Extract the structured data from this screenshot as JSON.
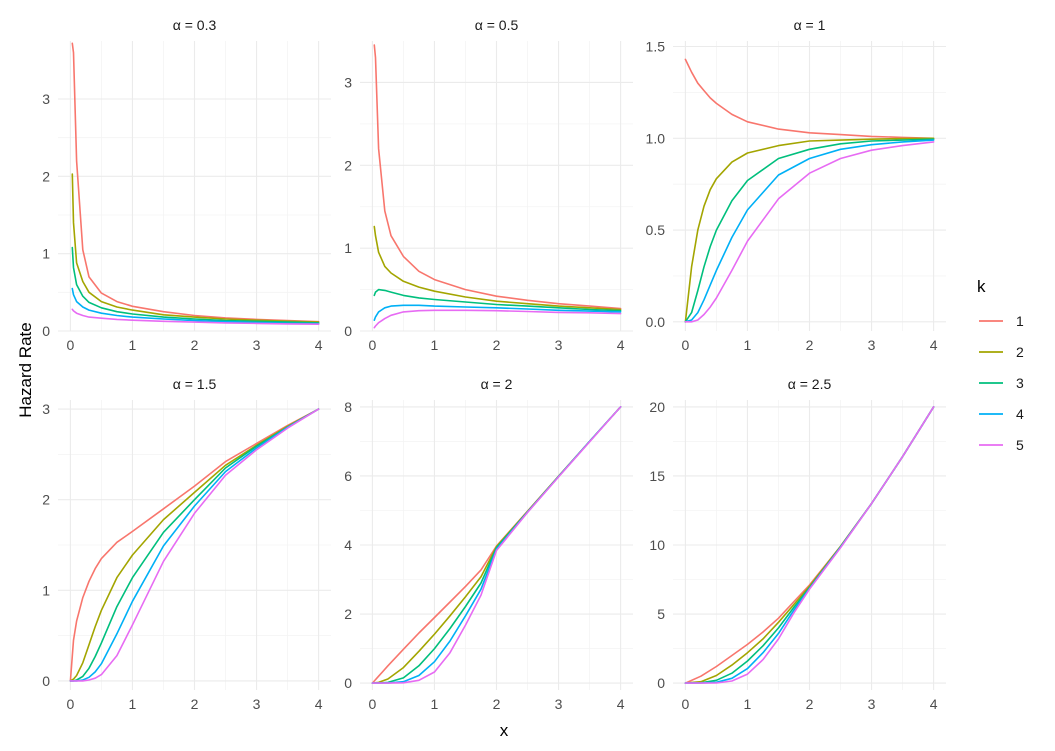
{
  "chart_data": {
    "type": "line",
    "xlabel": "x",
    "ylabel": "Hazard Rate",
    "legend": {
      "title": "k",
      "placement": "right",
      "entries": [
        "1",
        "2",
        "3",
        "4",
        "5"
      ]
    },
    "colors": [
      "#F8766D",
      "#A3A500",
      "#00BF7D",
      "#00B0F6",
      "#E76BF3"
    ],
    "grid": true,
    "xlim": [
      0,
      4
    ],
    "x_ticks": [
      "0",
      "1",
      "2",
      "3",
      "4"
    ],
    "panels": [
      {
        "title": "α = 0.3",
        "alpha": 0.3,
        "ylim": [
          0,
          3.75
        ],
        "y_ticks": [
          0,
          1,
          2,
          3
        ],
        "y_tick_labels": [
          "0",
          "1",
          "2",
          "3"
        ],
        "x": [
          0.03,
          0.05,
          0.1,
          0.2,
          0.3,
          0.5,
          0.75,
          1.0,
          1.5,
          2.0,
          2.5,
          3.0,
          3.5,
          4.0
        ],
        "series": [
          {
            "name": "1",
            "values": [
              3.72,
              3.6,
              2.2,
              1.05,
              0.7,
              0.49,
              0.38,
              0.32,
              0.25,
              0.2,
              0.17,
              0.15,
              0.135,
              0.12
            ]
          },
          {
            "name": "2",
            "values": [
              2.03,
              1.4,
              0.88,
              0.64,
              0.5,
              0.38,
              0.31,
              0.27,
              0.21,
              0.18,
              0.155,
              0.14,
              0.125,
              0.115
            ]
          },
          {
            "name": "3",
            "values": [
              1.08,
              0.82,
              0.6,
              0.45,
              0.37,
              0.3,
              0.25,
              0.22,
              0.18,
              0.155,
              0.135,
              0.125,
              0.115,
              0.105
            ]
          },
          {
            "name": "4",
            "values": [
              0.55,
              0.47,
              0.38,
              0.31,
              0.27,
              0.23,
              0.2,
              0.18,
              0.155,
              0.135,
              0.12,
              0.11,
              0.1,
              0.095
            ]
          },
          {
            "name": "5",
            "values": [
              0.28,
              0.26,
              0.23,
              0.2,
              0.18,
              0.165,
              0.15,
              0.14,
              0.125,
              0.115,
              0.105,
              0.098,
              0.092,
              0.088
            ]
          }
        ]
      },
      {
        "title": "α = 0.5",
        "alpha": 0.5,
        "ylim": [
          0,
          3.5
        ],
        "y_ticks": [
          0,
          1,
          2,
          3
        ],
        "y_tick_labels": [
          "0",
          "1",
          "2",
          "3"
        ],
        "x": [
          0.03,
          0.05,
          0.1,
          0.2,
          0.3,
          0.5,
          0.75,
          1.0,
          1.5,
          2.0,
          2.5,
          3.0,
          3.5,
          4.0
        ],
        "series": [
          {
            "name": "1",
            "values": [
              3.45,
              3.3,
              2.2,
              1.45,
              1.15,
              0.9,
              0.72,
              0.62,
              0.5,
              0.42,
              0.37,
              0.33,
              0.3,
              0.27
            ]
          },
          {
            "name": "2",
            "values": [
              1.26,
              1.15,
              0.95,
              0.78,
              0.7,
              0.6,
              0.53,
              0.48,
              0.41,
              0.36,
              0.33,
              0.3,
              0.28,
              0.26
            ]
          },
          {
            "name": "3",
            "values": [
              0.43,
              0.47,
              0.5,
              0.49,
              0.47,
              0.43,
              0.4,
              0.38,
              0.35,
              0.32,
              0.3,
              0.28,
              0.26,
              0.245
            ]
          },
          {
            "name": "4",
            "values": [
              0.13,
              0.17,
              0.23,
              0.28,
              0.3,
              0.31,
              0.31,
              0.3,
              0.29,
              0.28,
              0.265,
              0.25,
              0.24,
              0.23
            ]
          },
          {
            "name": "5",
            "values": [
              0.04,
              0.06,
              0.1,
              0.15,
              0.19,
              0.23,
              0.245,
              0.25,
              0.25,
              0.245,
              0.235,
              0.225,
              0.22,
              0.21
            ]
          }
        ]
      },
      {
        "title": "α = 1",
        "alpha": 1,
        "ylim": [
          -0.05,
          1.53
        ],
        "y_ticks": [
          0,
          0.5,
          1.0,
          1.5
        ],
        "y_tick_labels": [
          "0.0",
          "0.5",
          "1.0",
          "1.5"
        ],
        "x": [
          0.0,
          0.1,
          0.2,
          0.3,
          0.4,
          0.5,
          0.75,
          1.0,
          1.5,
          2.0,
          2.5,
          3.0,
          3.5,
          4.0
        ],
        "series": [
          {
            "name": "1",
            "values": [
              1.43,
              1.36,
              1.3,
              1.26,
              1.22,
              1.19,
              1.13,
              1.09,
              1.05,
              1.03,
              1.02,
              1.01,
              1.005,
              1.0
            ]
          },
          {
            "name": "2",
            "values": [
              0.0,
              0.3,
              0.5,
              0.63,
              0.72,
              0.78,
              0.87,
              0.92,
              0.96,
              0.985,
              0.99,
              0.995,
              0.998,
              1.0
            ]
          },
          {
            "name": "3",
            "values": [
              0.0,
              0.05,
              0.17,
              0.3,
              0.41,
              0.5,
              0.66,
              0.77,
              0.89,
              0.94,
              0.97,
              0.985,
              0.99,
              0.995
            ]
          },
          {
            "name": "4",
            "values": [
              0.0,
              0.01,
              0.05,
              0.12,
              0.2,
              0.28,
              0.46,
              0.61,
              0.8,
              0.89,
              0.94,
              0.965,
              0.98,
              0.99
            ]
          },
          {
            "name": "5",
            "values": [
              0.0,
              0.0,
              0.01,
              0.04,
              0.08,
              0.13,
              0.28,
              0.44,
              0.67,
              0.81,
              0.89,
              0.935,
              0.96,
              0.98
            ]
          }
        ]
      },
      {
        "title": "α = 1.5",
        "alpha": 1.5,
        "ylim": [
          -0.1,
          3.1
        ],
        "y_ticks": [
          0,
          1,
          2,
          3
        ],
        "y_tick_labels": [
          "0",
          "1",
          "2",
          "3"
        ],
        "x": [
          0.0,
          0.05,
          0.1,
          0.2,
          0.3,
          0.4,
          0.5,
          0.75,
          1.0,
          1.5,
          2.0,
          2.5,
          3.0,
          3.5,
          4.0
        ],
        "series": [
          {
            "name": "1",
            "values": [
              0.0,
              0.45,
              0.66,
              0.92,
              1.1,
              1.24,
              1.35,
              1.53,
              1.65,
              1.9,
              2.15,
              2.42,
              2.62,
              2.82,
              3.0
            ]
          },
          {
            "name": "2",
            "values": [
              0.0,
              0.02,
              0.06,
              0.2,
              0.4,
              0.6,
              0.78,
              1.14,
              1.39,
              1.78,
              2.08,
              2.38,
              2.6,
              2.81,
              3.0
            ]
          },
          {
            "name": "3",
            "values": [
              0.0,
              0.0,
              0.01,
              0.05,
              0.14,
              0.27,
              0.42,
              0.82,
              1.14,
              1.64,
              2.0,
              2.35,
              2.59,
              2.8,
              3.0
            ]
          },
          {
            "name": "4",
            "values": [
              0.0,
              0.0,
              0.0,
              0.01,
              0.04,
              0.1,
              0.19,
              0.52,
              0.88,
              1.49,
              1.93,
              2.31,
              2.57,
              2.8,
              3.0
            ]
          },
          {
            "name": "5",
            "values": [
              0.0,
              0.0,
              0.0,
              0.0,
              0.01,
              0.03,
              0.07,
              0.28,
              0.62,
              1.32,
              1.85,
              2.27,
              2.55,
              2.79,
              3.0
            ]
          }
        ]
      },
      {
        "title": "α = 2",
        "alpha": 2,
        "ylim": [
          -0.2,
          8.2
        ],
        "y_ticks": [
          0,
          2,
          4,
          6,
          8
        ],
        "y_tick_labels": [
          "0",
          "2",
          "4",
          "6",
          "8"
        ],
        "x": [
          0.0,
          0.1,
          0.25,
          0.5,
          0.75,
          1.0,
          1.25,
          1.5,
          1.75,
          2.0,
          2.5,
          3.0,
          3.5,
          4.0
        ],
        "series": [
          {
            "name": "1",
            "values": [
              0.0,
              0.2,
              0.5,
              0.98,
              1.45,
              1.9,
              2.35,
              2.8,
              3.28,
              3.97,
              4.98,
              5.99,
              7.0,
              8.0
            ]
          },
          {
            "name": "2",
            "values": [
              0.0,
              0.02,
              0.12,
              0.45,
              0.92,
              1.42,
              1.95,
              2.5,
              3.08,
              3.95,
              4.97,
              5.99,
              7.0,
              8.0
            ]
          },
          {
            "name": "3",
            "values": [
              0.0,
              0.0,
              0.02,
              0.15,
              0.5,
              1.0,
              1.58,
              2.22,
              2.9,
              3.92,
              4.96,
              5.98,
              7.0,
              8.0
            ]
          },
          {
            "name": "4",
            "values": [
              0.0,
              0.0,
              0.0,
              0.04,
              0.22,
              0.62,
              1.22,
              1.95,
              2.72,
              3.88,
              4.95,
              5.98,
              7.0,
              8.0
            ]
          },
          {
            "name": "5",
            "values": [
              0.0,
              0.0,
              0.0,
              0.01,
              0.08,
              0.32,
              0.88,
              1.68,
              2.55,
              3.84,
              4.94,
              5.97,
              6.99,
              8.0
            ]
          }
        ]
      },
      {
        "title": "α = 2.5",
        "alpha": 2.5,
        "ylim": [
          -0.5,
          20.5
        ],
        "y_ticks": [
          0,
          5,
          10,
          15,
          20
        ],
        "y_tick_labels": [
          "0",
          "5",
          "10",
          "15",
          "20"
        ],
        "x": [
          0.0,
          0.25,
          0.5,
          0.75,
          1.0,
          1.25,
          1.5,
          1.75,
          2.0,
          2.5,
          3.0,
          3.5,
          4.0
        ],
        "series": [
          {
            "name": "1",
            "values": [
              0.0,
              0.5,
              1.2,
              2.0,
              2.8,
              3.7,
              4.7,
              5.9,
              7.1,
              9.9,
              13.0,
              16.4,
              20.0
            ]
          },
          {
            "name": "2",
            "values": [
              0.0,
              0.1,
              0.55,
              1.3,
              2.2,
              3.2,
              4.4,
              5.7,
              7.0,
              9.9,
              13.0,
              16.4,
              20.0
            ]
          },
          {
            "name": "3",
            "values": [
              0.0,
              0.02,
              0.2,
              0.72,
              1.6,
              2.7,
              4.0,
              5.5,
              6.9,
              9.85,
              13.0,
              16.4,
              20.0
            ]
          },
          {
            "name": "4",
            "values": [
              0.0,
              0.0,
              0.06,
              0.35,
              1.05,
              2.2,
              3.6,
              5.3,
              6.85,
              9.85,
              13.0,
              16.4,
              20.0
            ]
          },
          {
            "name": "5",
            "values": [
              0.0,
              0.0,
              0.01,
              0.15,
              0.65,
              1.7,
              3.2,
              5.1,
              6.8,
              9.8,
              13.0,
              16.4,
              20.0
            ]
          }
        ]
      }
    ]
  }
}
